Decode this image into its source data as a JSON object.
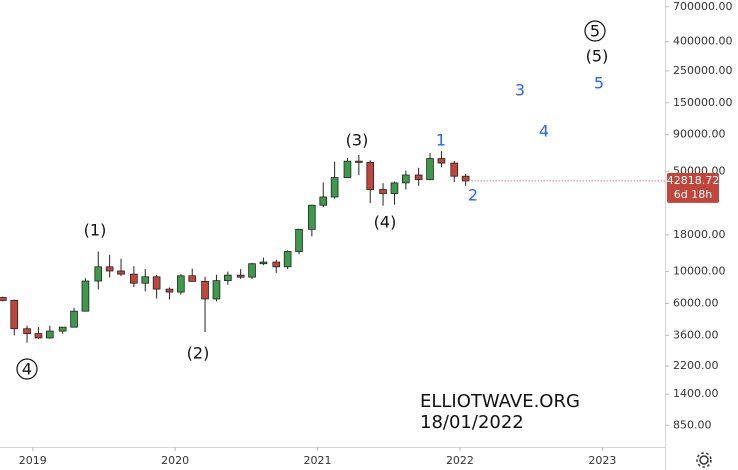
{
  "chart_data": {
    "type": "candlestick",
    "log_scale": true,
    "grid": false,
    "up_color": "#3d9a4a",
    "down_color": "#c0453a",
    "x": [
      2018.79,
      2018.87,
      2018.96,
      2019.04,
      2019.12,
      2019.21,
      2019.29,
      2019.37,
      2019.46,
      2019.54,
      2019.62,
      2019.71,
      2019.79,
      2019.87,
      2019.96,
      2020.04,
      2020.12,
      2020.21,
      2020.29,
      2020.37,
      2020.46,
      2020.54,
      2020.62,
      2020.71,
      2020.79,
      2020.87,
      2020.96,
      2021.04,
      2021.12,
      2021.21,
      2021.29,
      2021.37,
      2021.46,
      2021.54,
      2021.62,
      2021.71,
      2021.79,
      2021.87,
      2021.96,
      2022.04
    ],
    "open": [
      6600,
      6300,
      4000,
      3700,
      3450,
      3850,
      4100,
      5300,
      8600,
      10800,
      10100,
      9600,
      8300,
      9200,
      7550,
      7200,
      9350,
      8550,
      6450,
      8650,
      9450,
      9150,
      11350,
      11650,
      10800,
      13800,
      19700,
      29000,
      33100,
      45200,
      58800,
      57700,
      37300,
      35000,
      41500,
      47100,
      43800,
      61300,
      57000,
      46200
    ],
    "high": [
      6700,
      6400,
      4200,
      4100,
      4200,
      4100,
      5600,
      9000,
      13800,
      13100,
      12300,
      10900,
      10400,
      9500,
      7750,
      9600,
      10500,
      9200,
      9500,
      10000,
      10400,
      11500,
      12500,
      12100,
      14100,
      19900,
      29300,
      41900,
      58300,
      61800,
      64900,
      59600,
      41300,
      42400,
      50500,
      52900,
      67000,
      69000,
      59100,
      47900
    ],
    "low": [
      6200,
      3600,
      3200,
      3400,
      3400,
      3700,
      4100,
      5300,
      7500,
      9100,
      9300,
      7800,
      7300,
      6500,
      6400,
      6900,
      8500,
      3800,
      6200,
      8100,
      8900,
      8900,
      11100,
      9800,
      10400,
      13200,
      17600,
      28100,
      32300,
      45000,
      47000,
      30000,
      28800,
      29300,
      37300,
      39600,
      43300,
      53300,
      42000,
      39600
    ],
    "close": [
      6300,
      4000,
      3700,
      3450,
      3850,
      4100,
      5300,
      8600,
      10800,
      10100,
      9600,
      8300,
      9200,
      7550,
      7200,
      9350,
      8550,
      6450,
      8650,
      9450,
      9150,
      11350,
      11650,
      10800,
      13800,
      19700,
      29000,
      33100,
      45200,
      58800,
      57700,
      37300,
      35000,
      41500,
      47100,
      43800,
      61300,
      57000,
      46200,
      42818.72
    ],
    "xlim": [
      2018.77,
      2023.44
    ],
    "xticks": [
      2019,
      2020,
      2021,
      2022,
      2023
    ],
    "ylim": [
      600,
      780000
    ],
    "yticks": [
      {
        "value": 700000,
        "label": "700000.00"
      },
      {
        "value": 400000,
        "label": "400000.00"
      },
      {
        "value": 250000,
        "label": "250000.00"
      },
      {
        "value": 150000,
        "label": "150000.00"
      },
      {
        "value": 90000,
        "label": "90000.00"
      },
      {
        "value": 50000,
        "label": "50000.00"
      },
      {
        "value": 18000,
        "label": "18000.00"
      },
      {
        "value": 10000,
        "label": "10000.00"
      },
      {
        "value": 6000,
        "label": "6000.00"
      },
      {
        "value": 3600,
        "label": "3600.00"
      },
      {
        "value": 2200,
        "label": "2200.00"
      },
      {
        "value": 1400,
        "label": "1400.00"
      },
      {
        "value": 850,
        "label": "850.00"
      }
    ],
    "countdown": "6d 18h",
    "watermark": [
      "ELLIOTWAVE.ORG",
      "18/01/2022"
    ],
    "annotations": [
      {
        "text": "(3)",
        "color": "#111111",
        "circled": false
      },
      {
        "text": "(4)",
        "color": "#111111",
        "circled": false
      },
      {
        "text": "1",
        "color": "#2962ff",
        "circled": false
      },
      {
        "text": "2",
        "color": "#2962ff",
        "circled": false
      },
      {
        "text": "(1)",
        "color": "#111111",
        "circled": false
      },
      {
        "text": "(2)",
        "color": "#111111",
        "circled": false
      },
      {
        "text": "4",
        "color": "#111111",
        "circled": true
      },
      {
        "text": "3",
        "color": "#2962ff",
        "circled": false
      },
      {
        "text": "4",
        "color": "#2962ff",
        "circled": false
      },
      {
        "text": "5",
        "color": "#2962ff",
        "circled": false
      },
      {
        "text": "(5)",
        "color": "#111111",
        "circled": false
      },
      {
        "text": "5",
        "color": "#111111",
        "circled": true
      }
    ]
  }
}
